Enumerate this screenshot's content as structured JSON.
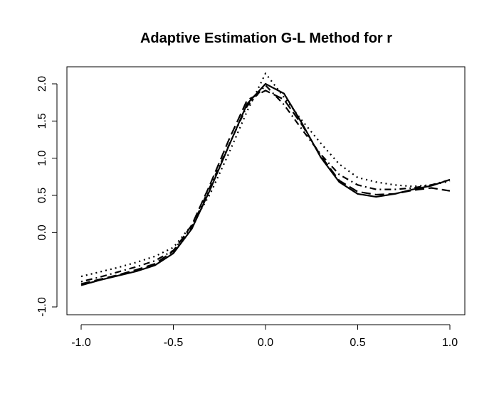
{
  "chart_data": {
    "type": "line",
    "title": "Adaptive Estimation G-L Method for r",
    "xlabel": "",
    "ylabel": "",
    "xlim": [
      -1.0,
      1.0
    ],
    "ylim": [
      -1.0,
      2.0
    ],
    "x_ticks": [
      -1.0,
      -0.5,
      0.0,
      0.5,
      1.0
    ],
    "x_tick_labels": [
      "-1.0",
      "-0.5",
      "0.0",
      "0.5",
      "1.0"
    ],
    "y_ticks": [
      -1.0,
      0.0,
      0.5,
      1.0,
      1.5,
      2.0
    ],
    "y_tick_labels": [
      "-1.0",
      "0.0",
      "0.5",
      "1.0",
      "1.5",
      "2.0"
    ],
    "grid": false,
    "series": [
      {
        "name": "solid",
        "line_style": "solid",
        "x": [
          -1.0,
          -0.9,
          -0.8,
          -0.7,
          -0.6,
          -0.5,
          -0.4,
          -0.3,
          -0.2,
          -0.1,
          0.0,
          0.1,
          0.2,
          0.3,
          0.4,
          0.5,
          0.6,
          0.7,
          0.8,
          0.9,
          1.0
        ],
        "values": [
          -0.71,
          -0.64,
          -0.58,
          -0.52,
          -0.44,
          -0.28,
          0.05,
          0.58,
          1.16,
          1.73,
          2.0,
          1.87,
          1.46,
          1.01,
          0.68,
          0.52,
          0.48,
          0.52,
          0.58,
          0.63,
          0.71
        ]
      },
      {
        "name": "dashed",
        "line_style": "dashed",
        "x": [
          -1.0,
          -0.9,
          -0.8,
          -0.7,
          -0.6,
          -0.5,
          -0.4,
          -0.3,
          -0.2,
          -0.1,
          0.0,
          0.1,
          0.2,
          0.3,
          0.4,
          0.5,
          0.6,
          0.7,
          0.8,
          0.9,
          1.0
        ],
        "values": [
          -0.69,
          -0.63,
          -0.57,
          -0.5,
          -0.42,
          -0.25,
          0.1,
          0.65,
          1.24,
          1.78,
          1.91,
          1.79,
          1.44,
          1.03,
          0.7,
          0.55,
          0.51,
          0.52,
          0.57,
          0.6,
          0.56
        ]
      },
      {
        "name": "dotted",
        "line_style": "dotted",
        "x": [
          -1.0,
          -0.9,
          -0.8,
          -0.7,
          -0.6,
          -0.5,
          -0.4,
          -0.3,
          -0.2,
          -0.1,
          0.0,
          0.1,
          0.2,
          0.3,
          0.4,
          0.5,
          0.6,
          0.7,
          0.8,
          0.9,
          1.0
        ],
        "values": [
          -0.59,
          -0.53,
          -0.47,
          -0.4,
          -0.32,
          -0.2,
          0.1,
          0.52,
          1.06,
          1.63,
          2.14,
          1.82,
          1.5,
          1.2,
          0.92,
          0.74,
          0.68,
          0.64,
          0.62,
          0.64,
          0.69
        ]
      },
      {
        "name": "dot-dash",
        "line_style": "dotdash",
        "x": [
          -1.0,
          -0.9,
          -0.8,
          -0.7,
          -0.6,
          -0.5,
          -0.4,
          -0.3,
          -0.2,
          -0.1,
          0.0,
          0.1,
          0.2,
          0.3,
          0.4,
          0.5,
          0.6,
          0.7,
          0.8,
          0.9,
          1.0
        ],
        "values": [
          -0.66,
          -0.6,
          -0.53,
          -0.46,
          -0.38,
          -0.24,
          0.07,
          0.62,
          1.17,
          1.7,
          1.98,
          1.72,
          1.38,
          1.05,
          0.78,
          0.64,
          0.58,
          0.58,
          0.6,
          0.64,
          0.71
        ]
      }
    ]
  }
}
